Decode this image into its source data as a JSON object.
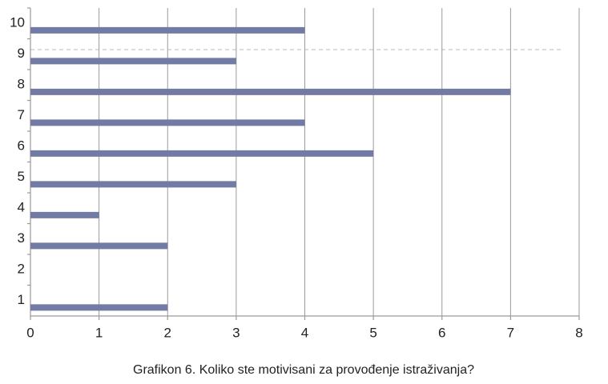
{
  "chart_data": {
    "type": "barh",
    "title": "Grafikon 6. Koliko ste motivisani za provođenje istraživanja?",
    "categories": [
      "1",
      "2",
      "3",
      "4",
      "5",
      "6",
      "7",
      "8",
      "9",
      "10"
    ],
    "values": [
      2,
      0,
      2,
      1,
      3,
      5,
      4,
      7,
      3,
      4
    ],
    "color": "#717ba3",
    "xlim": [
      0,
      8
    ],
    "xticks": [
      0,
      1,
      2,
      3,
      4,
      5,
      6,
      7,
      8
    ],
    "grid": true
  }
}
